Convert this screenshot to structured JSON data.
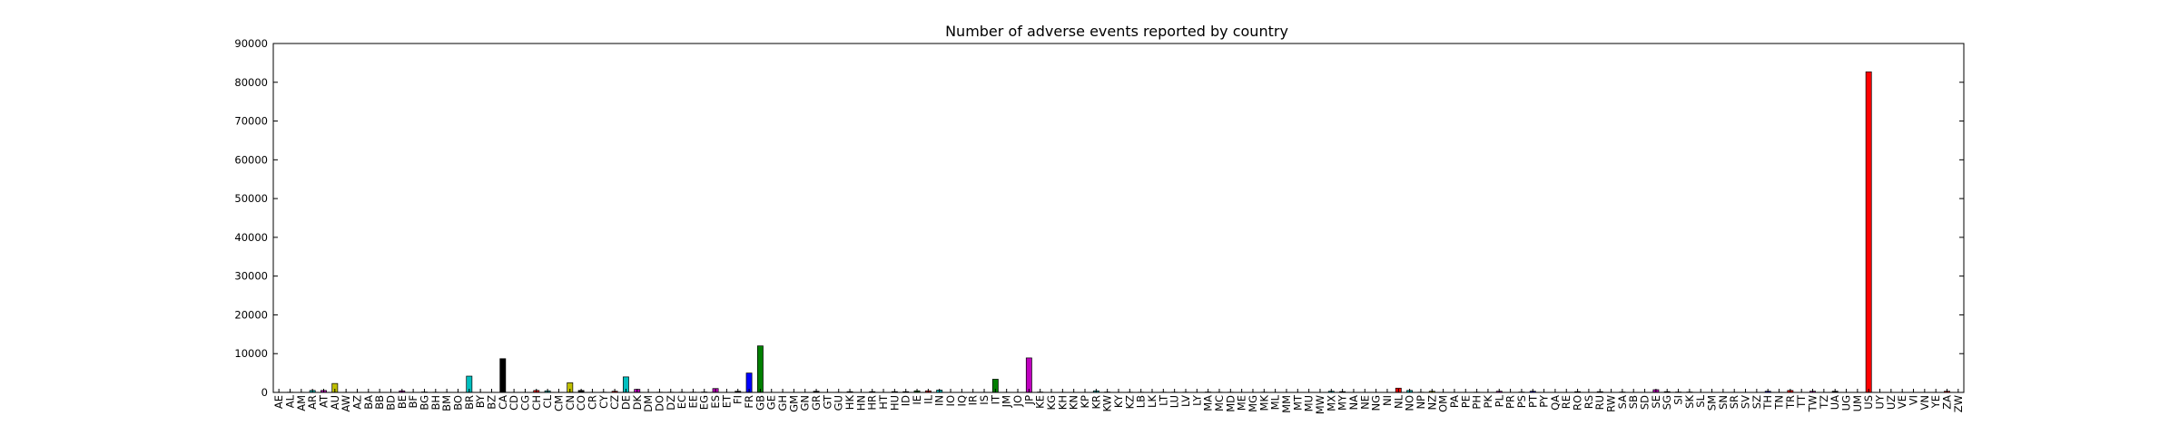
{
  "chart_data": {
    "type": "bar",
    "title": "Number of adverse events reported by country",
    "xlabel": "",
    "ylabel": "",
    "ylim": [
      0,
      90000
    ],
    "yticks": [
      "0",
      "10000",
      "20000",
      "30000",
      "40000",
      "50000",
      "60000",
      "70000",
      "80000",
      "90000"
    ],
    "grid": false,
    "legend": "none",
    "categories": [
      "AE",
      "AL",
      "AM",
      "AR",
      "AT",
      "AU",
      "AW",
      "AZ",
      "BA",
      "BB",
      "BD",
      "BE",
      "BF",
      "BG",
      "BH",
      "BM",
      "BO",
      "BR",
      "BY",
      "BZ",
      "CA",
      "CD",
      "CG",
      "CH",
      "CL",
      "CM",
      "CN",
      "CO",
      "CR",
      "CY",
      "CZ",
      "DE",
      "DK",
      "DM",
      "DO",
      "DZ",
      "EC",
      "EE",
      "EG",
      "ES",
      "ET",
      "FI",
      "FR",
      "GB",
      "GE",
      "GH",
      "GM",
      "GN",
      "GR",
      "GT",
      "GU",
      "HK",
      "HN",
      "HR",
      "HT",
      "HU",
      "ID",
      "IE",
      "IL",
      "IN",
      "IO",
      "IQ",
      "IR",
      "IS",
      "IT",
      "JM",
      "JO",
      "JP",
      "KE",
      "KG",
      "KH",
      "KN",
      "KP",
      "KR",
      "KW",
      "KY",
      "KZ",
      "LB",
      "LK",
      "LT",
      "LU",
      "LV",
      "LY",
      "MA",
      "MC",
      "MD",
      "ME",
      "MG",
      "MK",
      "ML",
      "MM",
      "MT",
      "MU",
      "MW",
      "MX",
      "MY",
      "NA",
      "NE",
      "NG",
      "NI",
      "NL",
      "NO",
      "NP",
      "NZ",
      "OM",
      "PA",
      "PE",
      "PH",
      "PK",
      "PL",
      "PR",
      "PS",
      "PT",
      "PY",
      "QA",
      "RE",
      "RO",
      "RS",
      "RU",
      "RW",
      "SA",
      "SB",
      "SD",
      "SE",
      "SG",
      "SI",
      "SK",
      "SL",
      "SM",
      "SN",
      "SR",
      "SV",
      "SZ",
      "TH",
      "TN",
      "TR",
      "TT",
      "TW",
      "TZ",
      "UA",
      "UG",
      "UM",
      "US",
      "UY",
      "UZ",
      "VE",
      "VI",
      "VN",
      "YE",
      "ZA",
      "ZW"
    ],
    "values": [
      30,
      60,
      40,
      500,
      500,
      2300,
      40,
      30,
      40,
      30,
      30,
      400,
      30,
      100,
      50,
      40,
      30,
      4200,
      30,
      30,
      8700,
      30,
      30,
      500,
      400,
      30,
      2500,
      500,
      40,
      60,
      300,
      4000,
      800,
      30,
      60,
      60,
      60,
      60,
      100,
      1000,
      40,
      300,
      5000,
      12000,
      30,
      30,
      30,
      30,
      300,
      40,
      50,
      200,
      30,
      200,
      40,
      200,
      200,
      400,
      400,
      600,
      30,
      30,
      30,
      40,
      3400,
      40,
      30,
      8900,
      100,
      30,
      40,
      30,
      30,
      400,
      100,
      40,
      60,
      60,
      30,
      60,
      60,
      60,
      30,
      100,
      60,
      60,
      30,
      30,
      60,
      30,
      30,
      30,
      30,
      30,
      300,
      200,
      30,
      30,
      30,
      30,
      1100,
      500,
      60,
      300,
      30,
      30,
      30,
      60,
      30,
      300,
      30,
      100,
      300,
      30,
      30,
      30,
      200,
      30,
      200,
      40,
      100,
      30,
      30,
      700,
      200,
      100,
      100,
      30,
      30,
      30,
      40,
      30,
      30,
      300,
      40,
      500,
      30,
      300,
      30,
      300,
      30,
      30,
      82700,
      30,
      30,
      30,
      30,
      30,
      30,
      300,
      30
    ],
    "colors": [
      "#0000ff",
      "#007f00",
      "#ff0000",
      "#00bfbf",
      "#bf00bf",
      "#bfbf00",
      "#000000"
    ]
  }
}
